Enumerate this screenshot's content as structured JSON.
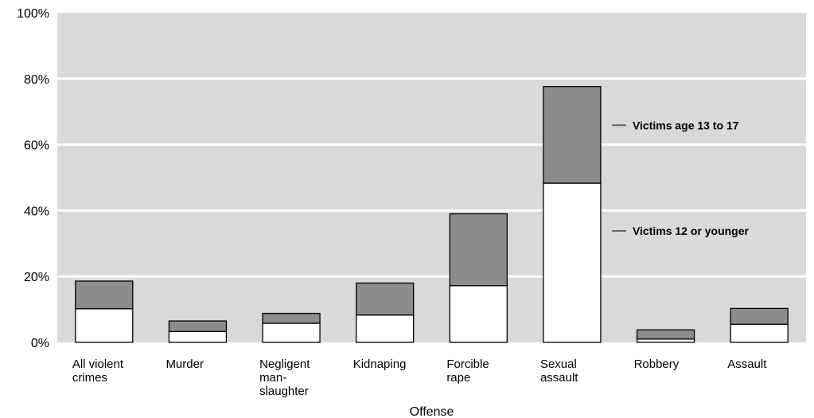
{
  "chart_data": {
    "type": "bar",
    "stacked": true,
    "xlabel": "Offense",
    "ylabel": "",
    "ylim": [
      0,
      100
    ],
    "yticks": [
      "0%",
      "20%",
      "40%",
      "60%",
      "80%",
      "100%"
    ],
    "grid": true,
    "categories": [
      [
        "All violent",
        "crimes"
      ],
      [
        "Murder"
      ],
      [
        "Negligent",
        "man-",
        "slaughter"
      ],
      [
        "Kidnaping"
      ],
      [
        "Forcible",
        "rape"
      ],
      [
        "Sexual",
        "assault"
      ],
      [
        "Robbery"
      ],
      [
        "Assault"
      ]
    ],
    "series": [
      {
        "name": "Victims 12 or younger",
        "values": [
          10.2,
          3.3,
          5.8,
          8.3,
          17.2,
          48.3,
          1.0,
          5.5
        ]
      },
      {
        "name": "Victims age 13 to 17",
        "values": [
          8.4,
          3.2,
          3.0,
          9.7,
          21.8,
          29.3,
          2.8,
          4.8
        ]
      }
    ],
    "colors": {
      "plot_bg": "#d9d9d9",
      "grid": "#ffffff",
      "younger": "#ffffff",
      "teen": "#8c8c8c",
      "outline": "#000000"
    }
  }
}
